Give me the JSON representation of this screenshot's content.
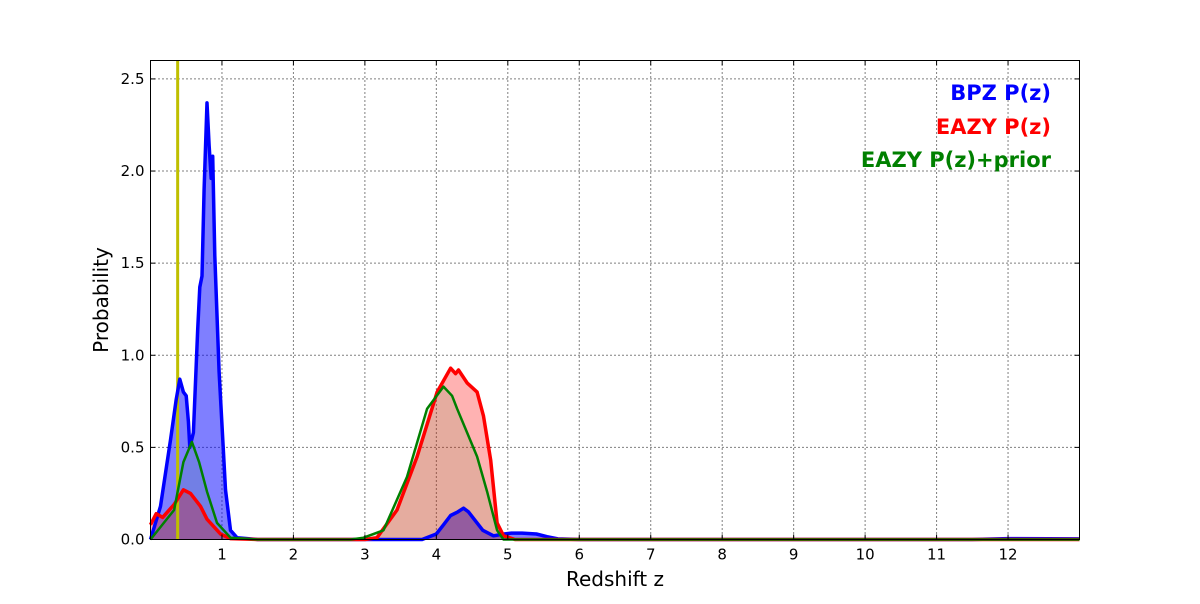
{
  "chart_data": {
    "type": "line",
    "title": "",
    "xlabel": "Redshift z",
    "ylabel": "Probability",
    "xlim": [
      0,
      13
    ],
    "ylim": [
      0,
      2.6
    ],
    "xticks": [
      1,
      2,
      3,
      4,
      5,
      6,
      7,
      8,
      9,
      10,
      11,
      12
    ],
    "yticks": [
      0.0,
      0.5,
      1.0,
      1.5,
      2.0,
      2.5
    ],
    "ytick_labels": [
      "0.0",
      "0.5",
      "1.0",
      "1.5",
      "2.0",
      "2.5"
    ],
    "grid": true,
    "legend_position": "top-right",
    "vertical_line": {
      "x": 0.38,
      "color": "#bfbf00"
    },
    "series": [
      {
        "name": "BPZ P(z)",
        "color": "#0000ff",
        "fill_opacity": 0.5,
        "x": [
          0,
          0.14,
          0.28,
          0.36,
          0.41,
          0.46,
          0.5,
          0.53,
          0.55,
          0.6,
          0.66,
          0.69,
          0.72,
          0.75,
          0.79,
          0.82,
          0.85,
          0.87,
          0.9,
          0.96,
          1.05,
          1.12,
          1.21,
          1.5,
          3.8,
          4.0,
          4.1,
          4.2,
          4.3,
          4.38,
          4.45,
          4.55,
          4.65,
          4.8,
          4.95,
          5.05,
          5.2,
          5.4,
          5.55,
          5.7,
          6,
          11.5,
          12,
          13
        ],
        "y": [
          0,
          0.18,
          0.54,
          0.76,
          0.87,
          0.8,
          0.78,
          0.64,
          0.5,
          0.58,
          1.14,
          1.37,
          1.43,
          1.9,
          2.37,
          2.14,
          1.96,
          2.08,
          1.54,
          0.91,
          0.27,
          0.05,
          0.01,
          0,
          0,
          0.03,
          0.08,
          0.13,
          0.15,
          0.17,
          0.15,
          0.1,
          0.05,
          0.02,
          0.03,
          0.035,
          0.035,
          0.03,
          0.015,
          0.003,
          0,
          0,
          0.005,
          0.003
        ]
      },
      {
        "name": "EAZY P(z)",
        "color": "#ff0000",
        "fill_opacity": 0.3,
        "x": [
          0,
          0.08,
          0.17,
          0.33,
          0.46,
          0.56,
          0.7,
          0.79,
          0.98,
          1.12,
          1.5,
          3.0,
          3.17,
          3.45,
          3.73,
          4.01,
          4.2,
          4.27,
          4.31,
          4.43,
          4.57,
          4.66,
          4.76,
          4.85,
          4.94,
          5.1,
          13
        ],
        "y": [
          0.08,
          0.14,
          0.12,
          0.19,
          0.27,
          0.25,
          0.18,
          0.11,
          0.03,
          0.005,
          0,
          0,
          0.01,
          0.16,
          0.45,
          0.8,
          0.93,
          0.9,
          0.92,
          0.85,
          0.8,
          0.67,
          0.43,
          0.09,
          0.02,
          0,
          0
        ]
      },
      {
        "name": "EAZY P(z)+prior",
        "color": "#008000",
        "fill_opacity": 0.1,
        "x": [
          0,
          0.33,
          0.46,
          0.58,
          0.68,
          0.79,
          0.93,
          1.12,
          1.5,
          2.8,
          2.98,
          3.26,
          3.59,
          3.87,
          4.1,
          4.22,
          4.29,
          4.43,
          4.57,
          4.71,
          4.85,
          4.94,
          5.1,
          13
        ],
        "y": [
          0,
          0.16,
          0.42,
          0.53,
          0.42,
          0.26,
          0.09,
          0.01,
          0,
          0,
          0.01,
          0.05,
          0.34,
          0.71,
          0.83,
          0.78,
          0.71,
          0.58,
          0.45,
          0.26,
          0.05,
          0,
          0,
          0
        ]
      }
    ]
  }
}
